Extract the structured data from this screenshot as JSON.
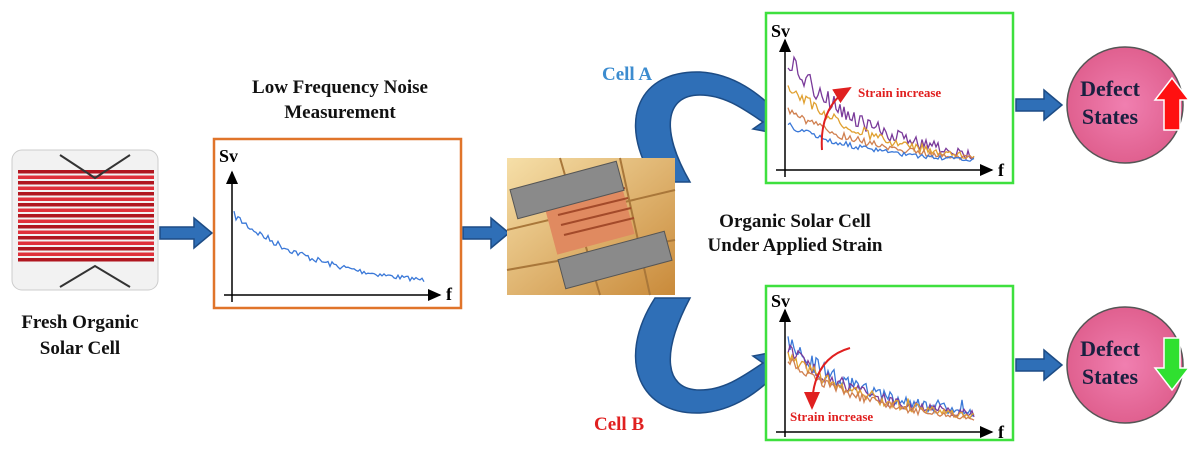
{
  "fresh_cell": {
    "label_lines": [
      "Fresh Organic",
      "Solar Cell"
    ]
  },
  "measurement": {
    "title_lines": [
      "Low Frequency Noise",
      "Measurement"
    ],
    "y_axis": "Sv",
    "x_axis": "f"
  },
  "strain": {
    "label_lines": [
      "Organic Solar Cell",
      "Under Applied Strain"
    ]
  },
  "cell_a": {
    "label": "Cell A",
    "y_axis": "Sv",
    "x_axis": "f",
    "annotation": "Strain increase",
    "result_lines": [
      "Defect",
      "States"
    ]
  },
  "cell_b": {
    "label": "Cell B",
    "y_axis": "Sv",
    "x_axis": "f",
    "annotation": "Strain increase",
    "result_lines": [
      "Defect",
      "States"
    ]
  }
}
